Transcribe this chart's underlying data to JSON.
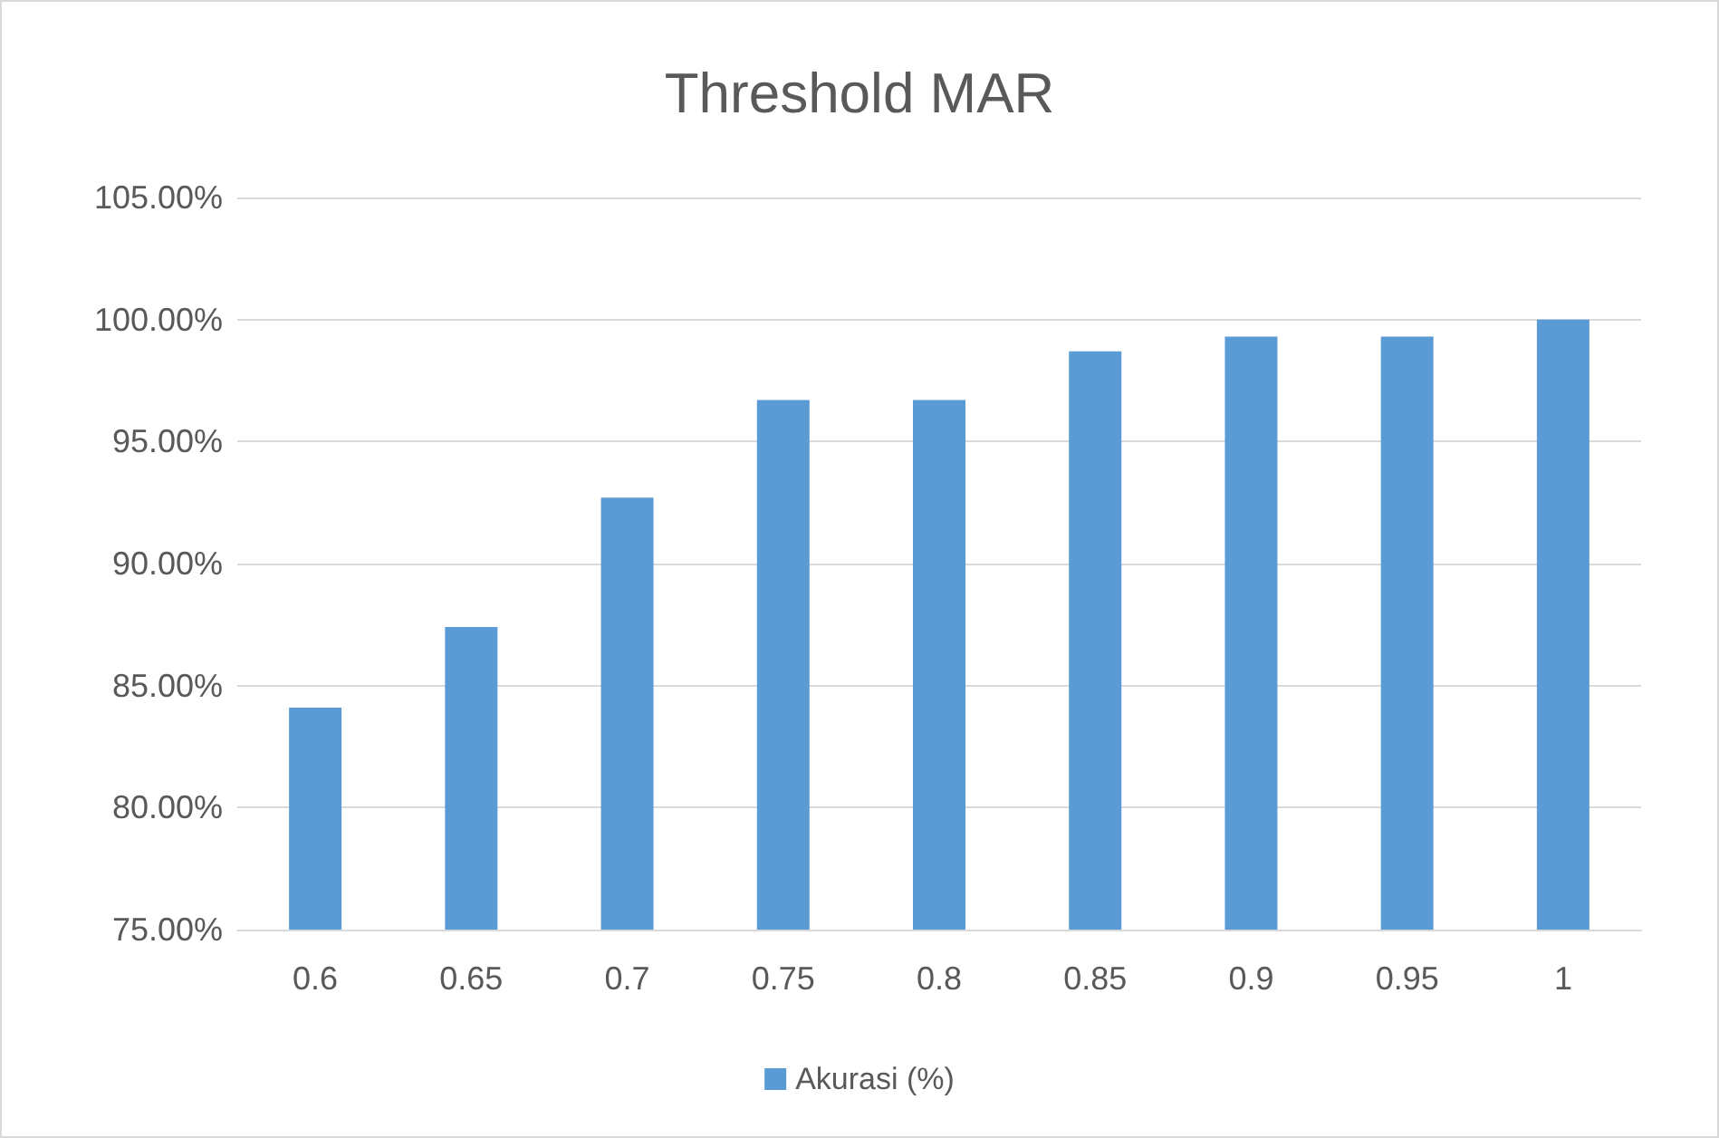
{
  "chart_data": {
    "type": "bar",
    "title": "Threshold MAR",
    "categories": [
      "0.6",
      "0.65",
      "0.7",
      "0.75",
      "0.8",
      "0.85",
      "0.9",
      "0.95",
      "1"
    ],
    "series": [
      {
        "name": "Akurasi (%)",
        "color": "#5b9bd5",
        "values": [
          84.1,
          87.4,
          92.7,
          96.7,
          96.7,
          98.7,
          99.3,
          99.3,
          100
        ]
      }
    ],
    "ylim": [
      75,
      105
    ],
    "yticks": [
      {
        "value": 75,
        "label": "75.00%"
      },
      {
        "value": 80,
        "label": "80.00%"
      },
      {
        "value": 85,
        "label": "85.00%"
      },
      {
        "value": 90,
        "label": "90.00%"
      },
      {
        "value": 95,
        "label": "95.00%"
      },
      {
        "value": 100,
        "label": "100.00%"
      },
      {
        "value": 105,
        "label": "105.00%"
      }
    ],
    "grid": "y",
    "legend": "bottom"
  }
}
